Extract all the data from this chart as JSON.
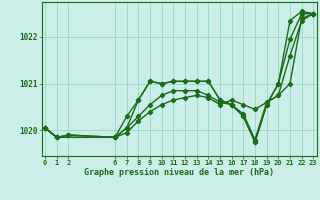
{
  "background_color": "#cceee8",
  "grid_color": "#99ddcc",
  "line_color": "#1a6b1a",
  "xlabel": "Graphe pression niveau de la mer (hPa)",
  "ylim": [
    1019.45,
    1022.75
  ],
  "yticks": [
    1020,
    1021,
    1022
  ],
  "xlim": [
    -0.3,
    23.3
  ],
  "xticks": [
    0,
    1,
    2,
    6,
    7,
    8,
    9,
    10,
    11,
    12,
    13,
    14,
    15,
    16,
    17,
    18,
    19,
    20,
    21,
    22,
    23
  ],
  "series": [
    {
      "x": [
        0,
        1,
        2,
        6,
        7,
        8,
        9,
        10,
        11,
        12,
        13,
        14,
        15,
        16,
        17,
        18,
        19,
        20,
        21,
        22,
        23
      ],
      "y": [
        1020.05,
        1019.85,
        1019.9,
        1019.85,
        1020.3,
        1020.65,
        1021.05,
        1021.0,
        1021.05,
        1021.05,
        1021.05,
        1021.05,
        1020.65,
        1020.55,
        1020.3,
        1019.75,
        1020.55,
        1021.0,
        1022.35,
        1022.55,
        1022.5
      ]
    },
    {
      "x": [
        0,
        1,
        6,
        7,
        8,
        9,
        10,
        11,
        12,
        13,
        14,
        15,
        16,
        17,
        18,
        19,
        20,
        21,
        22,
        23
      ],
      "y": [
        1020.05,
        1019.85,
        1019.85,
        1020.05,
        1020.65,
        1021.05,
        1021.0,
        1021.05,
        1021.05,
        1021.05,
        1021.05,
        1020.65,
        1020.55,
        1020.3,
        1019.75,
        1020.55,
        1021.0,
        1021.95,
        1022.5,
        1022.5
      ]
    },
    {
      "x": [
        0,
        1,
        6,
        7,
        8,
        9,
        10,
        11,
        12,
        13,
        14,
        15,
        16,
        17,
        18,
        19,
        20,
        21,
        22,
        23
      ],
      "y": [
        1020.05,
        1019.85,
        1019.85,
        1020.05,
        1020.3,
        1020.55,
        1020.75,
        1020.85,
        1020.85,
        1020.85,
        1020.75,
        1020.6,
        1020.55,
        1020.35,
        1019.8,
        1020.6,
        1020.75,
        1021.0,
        1022.4,
        1022.5
      ]
    },
    {
      "x": [
        0,
        1,
        2,
        6,
        7,
        8,
        9,
        10,
        11,
        12,
        13,
        14,
        15,
        16,
        17,
        18,
        19,
        20,
        21,
        22,
        23
      ],
      "y": [
        1020.05,
        1019.85,
        1019.9,
        1019.85,
        1019.95,
        1020.2,
        1020.4,
        1020.55,
        1020.65,
        1020.7,
        1020.75,
        1020.7,
        1020.55,
        1020.65,
        1020.55,
        1020.45,
        1020.6,
        1020.75,
        1021.6,
        1022.35,
        1022.5
      ]
    }
  ]
}
